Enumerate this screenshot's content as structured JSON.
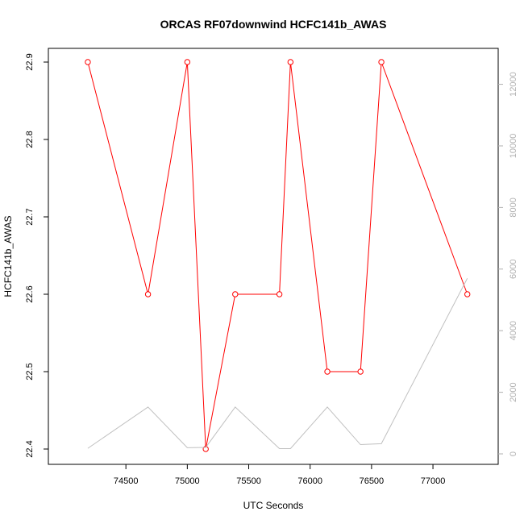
{
  "chart_data": {
    "type": "line",
    "title": "ORCAS RF07downwind HCFC141b_AWAS",
    "xlabel": "UTC Seconds",
    "ylabel": "HCFC141b_AWAS",
    "xlim": [
      74000,
      77400
    ],
    "ylim": [
      22.4,
      22.9
    ],
    "y2lim": [
      0,
      12800
    ],
    "x_ticks": [
      74500,
      75000,
      75500,
      76000,
      76500,
      77000
    ],
    "y_ticks": [
      22.4,
      22.5,
      22.6,
      22.7,
      22.8,
      22.9
    ],
    "y2_ticks": [
      0,
      2000,
      4000,
      6000,
      8000,
      10000,
      12000
    ],
    "colors": {
      "primary": "#ff0000",
      "secondary": "#c0c0c0"
    },
    "series": [
      {
        "axis": "left",
        "markers": "open-circle",
        "x": [
          74190,
          74680,
          75000,
          75150,
          75390,
          75750,
          75840,
          76140,
          76410,
          76580,
          77280
        ],
        "y": [
          22.9,
          22.6,
          22.9,
          22.4,
          22.6,
          22.6,
          22.9,
          22.5,
          22.5,
          22.9,
          22.6
        ]
      },
      {
        "axis": "right",
        "markers": "none",
        "x": [
          74190,
          74680,
          75000,
          75150,
          75390,
          75750,
          75840,
          76140,
          76410,
          76580,
          77280
        ],
        "y": [
          180,
          1520,
          200,
          210,
          1520,
          170,
          170,
          1520,
          300,
          330,
          5700
        ]
      }
    ]
  }
}
